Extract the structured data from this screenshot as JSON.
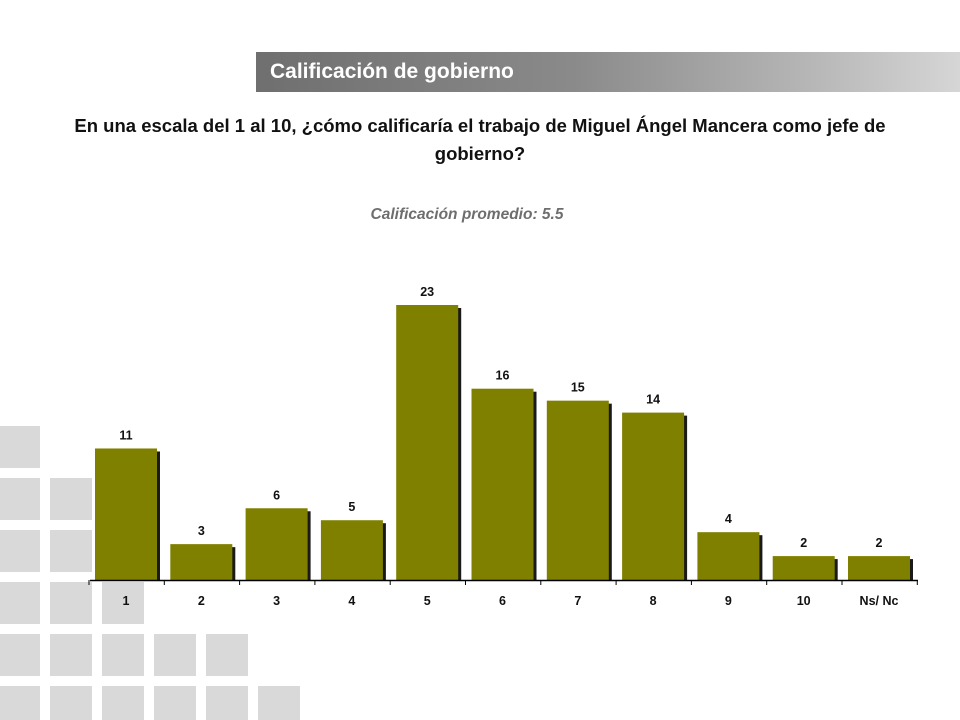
{
  "header": {
    "title": "Calificación de gobierno"
  },
  "question": "En una escala del 1 al 10, ¿cómo calificaría el trabajo de Miguel Ángel Mancera como jefe de gobierno?",
  "average_label": "Calificación promedio: 5.5",
  "colors": {
    "bar": "#808000",
    "decor": "#d9d9d9"
  },
  "chart_data": {
    "type": "bar",
    "title": "",
    "xlabel": "",
    "ylabel": "",
    "categories": [
      "1",
      "2",
      "3",
      "4",
      "5",
      "6",
      "7",
      "8",
      "9",
      "10",
      "Ns/ Nc"
    ],
    "values": [
      11,
      3,
      6,
      5,
      23,
      16,
      15,
      14,
      4,
      2,
      2
    ],
    "ylim": [
      0,
      23
    ],
    "grid": false,
    "legend": "none",
    "data_labels": true
  }
}
